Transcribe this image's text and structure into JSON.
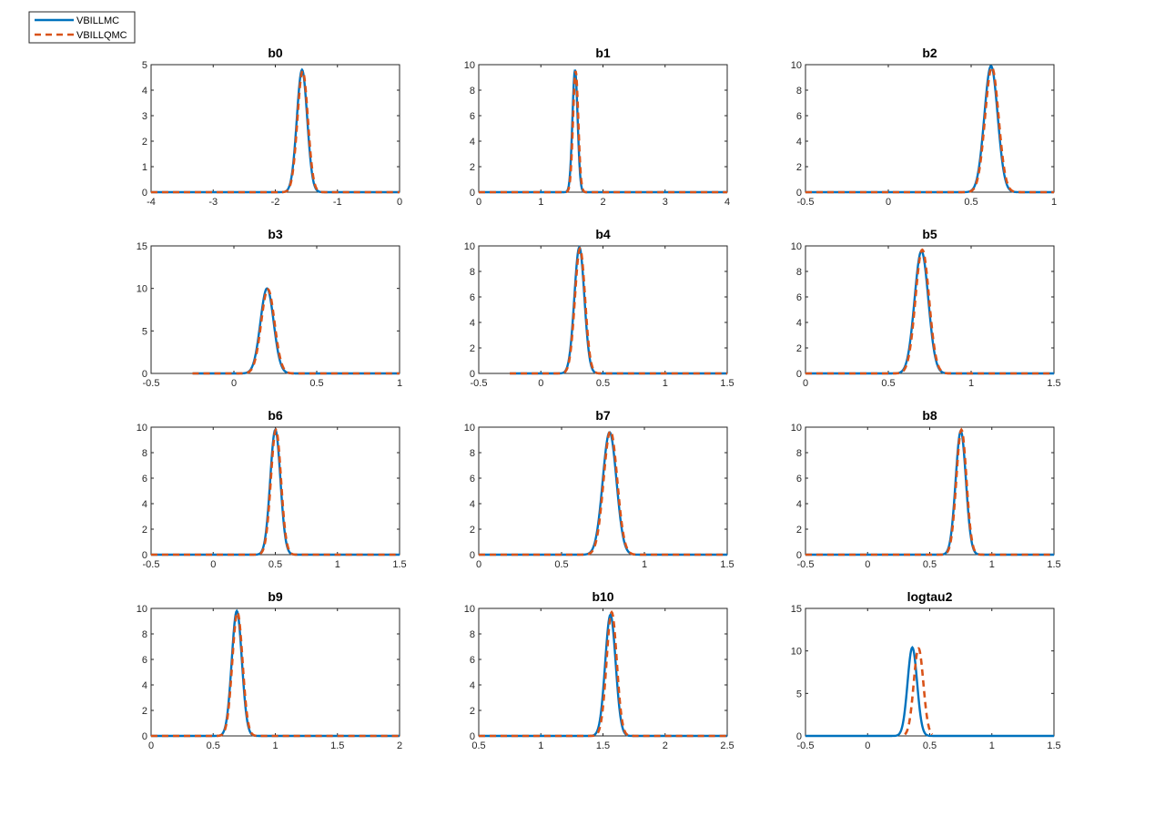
{
  "legend": {
    "placement": "top-left",
    "entries": [
      {
        "label": "VBILLMC",
        "color": "#0072BD",
        "style": "solid"
      },
      {
        "label": "VBILLQMC",
        "color": "#D95319",
        "style": "dashed"
      }
    ]
  },
  "chart_data": [
    {
      "type": "line",
      "title": "b0",
      "xlim": [
        -4,
        0
      ],
      "ylim": [
        0,
        5
      ],
      "xticks": [
        "-4",
        "-3",
        "-2",
        "-1",
        "0"
      ],
      "yticks": [
        "0",
        "1",
        "2",
        "3",
        "4",
        "5"
      ],
      "series": [
        {
          "name": "VBILLMC",
          "x_range": [
            -4,
            0
          ],
          "mean": -1.57,
          "peak": 4.8
        },
        {
          "name": "VBILLQMC",
          "x_range": [
            -4,
            0
          ],
          "mean": -1.56,
          "peak": 4.75
        }
      ]
    },
    {
      "type": "line",
      "title": "b1",
      "xlim": [
        0,
        4
      ],
      "ylim": [
        0,
        10
      ],
      "xticks": [
        "0",
        "1",
        "2",
        "3",
        "4"
      ],
      "yticks": [
        "0",
        "2",
        "4",
        "6",
        "8",
        "10"
      ],
      "series": [
        {
          "name": "VBILLMC",
          "x_range": [
            0,
            4
          ],
          "mean": 1.55,
          "peak": 9.6
        },
        {
          "name": "VBILLQMC",
          "x_range": [
            0,
            4
          ],
          "mean": 1.56,
          "peak": 9.5
        }
      ]
    },
    {
      "type": "line",
      "title": "b2",
      "xlim": [
        -0.5,
        1
      ],
      "ylim": [
        0,
        10
      ],
      "xticks": [
        "-0.5",
        "0",
        "0.5",
        "1"
      ],
      "yticks": [
        "0",
        "2",
        "4",
        "6",
        "8",
        "10"
      ],
      "series": [
        {
          "name": "VBILLMC",
          "x_range": [
            -0.5,
            1
          ],
          "mean": 0.62,
          "peak": 9.9
        },
        {
          "name": "VBILLQMC",
          "x_range": [
            -0.5,
            1
          ],
          "mean": 0.625,
          "peak": 9.8
        }
      ]
    },
    {
      "type": "line",
      "title": "b3",
      "xlim": [
        -0.5,
        1
      ],
      "ylim": [
        0,
        15
      ],
      "xticks": [
        "-0.5",
        "0",
        "0.5",
        "1"
      ],
      "yticks": [
        "0",
        "5",
        "10",
        "15"
      ],
      "series": [
        {
          "name": "VBILLMC",
          "x_range": [
            -0.25,
            1
          ],
          "mean": 0.2,
          "peak": 10
        },
        {
          "name": "VBILLQMC",
          "x_range": [
            -0.25,
            1
          ],
          "mean": 0.205,
          "peak": 9.9
        }
      ]
    },
    {
      "type": "line",
      "title": "b4",
      "xlim": [
        -0.5,
        1.5
      ],
      "ylim": [
        0,
        10
      ],
      "xticks": [
        "-0.5",
        "0",
        "0.5",
        "1",
        "1.5"
      ],
      "yticks": [
        "0",
        "2",
        "4",
        "6",
        "8",
        "10"
      ],
      "series": [
        {
          "name": "VBILLMC",
          "x_range": [
            -0.25,
            1.5
          ],
          "mean": 0.31,
          "peak": 9.9
        },
        {
          "name": "VBILLQMC",
          "x_range": [
            -0.25,
            1.5
          ],
          "mean": 0.315,
          "peak": 9.8
        }
      ]
    },
    {
      "type": "line",
      "title": "b5",
      "xlim": [
        0,
        1.5
      ],
      "ylim": [
        0,
        10
      ],
      "xticks": [
        "0",
        "0.5",
        "1",
        "1.5"
      ],
      "yticks": [
        "0",
        "2",
        "4",
        "6",
        "8",
        "10"
      ],
      "series": [
        {
          "name": "VBILLMC",
          "x_range": [
            0,
            1.5
          ],
          "mean": 0.7,
          "peak": 9.6
        },
        {
          "name": "VBILLQMC",
          "x_range": [
            0,
            1.5
          ],
          "mean": 0.705,
          "peak": 9.7
        }
      ]
    },
    {
      "type": "line",
      "title": "b6",
      "xlim": [
        -0.5,
        1.5
      ],
      "ylim": [
        0,
        10
      ],
      "xticks": [
        "-0.5",
        "0",
        "0.5",
        "1",
        "1.5"
      ],
      "yticks": [
        "0",
        "2",
        "4",
        "6",
        "8",
        "10"
      ],
      "series": [
        {
          "name": "VBILLMC",
          "x_range": [
            -0.5,
            1.5
          ],
          "mean": 0.5,
          "peak": 9.8
        },
        {
          "name": "VBILLQMC",
          "x_range": [
            -0.5,
            1.5
          ],
          "mean": 0.505,
          "peak": 9.8
        }
      ]
    },
    {
      "type": "line",
      "title": "b7",
      "xlim": [
        0,
        1.5
      ],
      "ylim": [
        0,
        10
      ],
      "xticks": [
        "0",
        "0.5",
        "1",
        "1.5"
      ],
      "yticks": [
        "0",
        "2",
        "4",
        "6",
        "8",
        "10"
      ],
      "series": [
        {
          "name": "VBILLMC",
          "x_range": [
            0,
            1.5
          ],
          "mean": 0.79,
          "peak": 9.6
        },
        {
          "name": "VBILLQMC",
          "x_range": [
            0,
            1.5
          ],
          "mean": 0.795,
          "peak": 9.7
        }
      ]
    },
    {
      "type": "line",
      "title": "b8",
      "xlim": [
        -0.5,
        1.5
      ],
      "ylim": [
        0,
        10
      ],
      "xticks": [
        "-0.5",
        "0",
        "0.5",
        "1",
        "1.5"
      ],
      "yticks": [
        "0",
        "2",
        "4",
        "6",
        "8",
        "10"
      ],
      "series": [
        {
          "name": "VBILLMC",
          "x_range": [
            -0.5,
            1.5
          ],
          "mean": 0.75,
          "peak": 9.7
        },
        {
          "name": "VBILLQMC",
          "x_range": [
            -0.5,
            1.5
          ],
          "mean": 0.755,
          "peak": 9.8
        }
      ]
    },
    {
      "type": "line",
      "title": "b9",
      "xlim": [
        0,
        2
      ],
      "ylim": [
        0,
        10
      ],
      "xticks": [
        "0",
        "0.5",
        "1",
        "1.5",
        "2"
      ],
      "yticks": [
        "0",
        "2",
        "4",
        "6",
        "8",
        "10"
      ],
      "series": [
        {
          "name": "VBILLMC",
          "x_range": [
            0,
            2
          ],
          "mean": 0.69,
          "peak": 9.8
        },
        {
          "name": "VBILLQMC",
          "x_range": [
            0,
            2
          ],
          "mean": 0.695,
          "peak": 9.7
        }
      ]
    },
    {
      "type": "line",
      "title": "b10",
      "xlim": [
        0.5,
        2.5
      ],
      "ylim": [
        0,
        10
      ],
      "xticks": [
        "0.5",
        "1",
        "1.5",
        "2",
        "2.5"
      ],
      "yticks": [
        "0",
        "2",
        "4",
        "6",
        "8",
        "10"
      ],
      "series": [
        {
          "name": "VBILLMC",
          "x_range": [
            0.5,
            2.5
          ],
          "mean": 1.56,
          "peak": 9.5
        },
        {
          "name": "VBILLQMC",
          "x_range": [
            0.5,
            2.5
          ],
          "mean": 1.57,
          "peak": 9.7
        }
      ]
    },
    {
      "type": "line",
      "title": "logtau2",
      "xlim": [
        -0.5,
        1.5
      ],
      "ylim": [
        0,
        15
      ],
      "xticks": [
        "-0.5",
        "0",
        "0.5",
        "1",
        "1.5"
      ],
      "yticks": [
        "0",
        "5",
        "10",
        "15"
      ],
      "series": [
        {
          "name": "VBILLMC",
          "x_range": [
            -0.5,
            1.5
          ],
          "mean": 0.36,
          "peak": 10.4
        },
        {
          "name": "VBILLQMC",
          "x_range": [
            0.3,
            0.52
          ],
          "mean": 0.41,
          "peak": 10.3
        }
      ]
    }
  ]
}
